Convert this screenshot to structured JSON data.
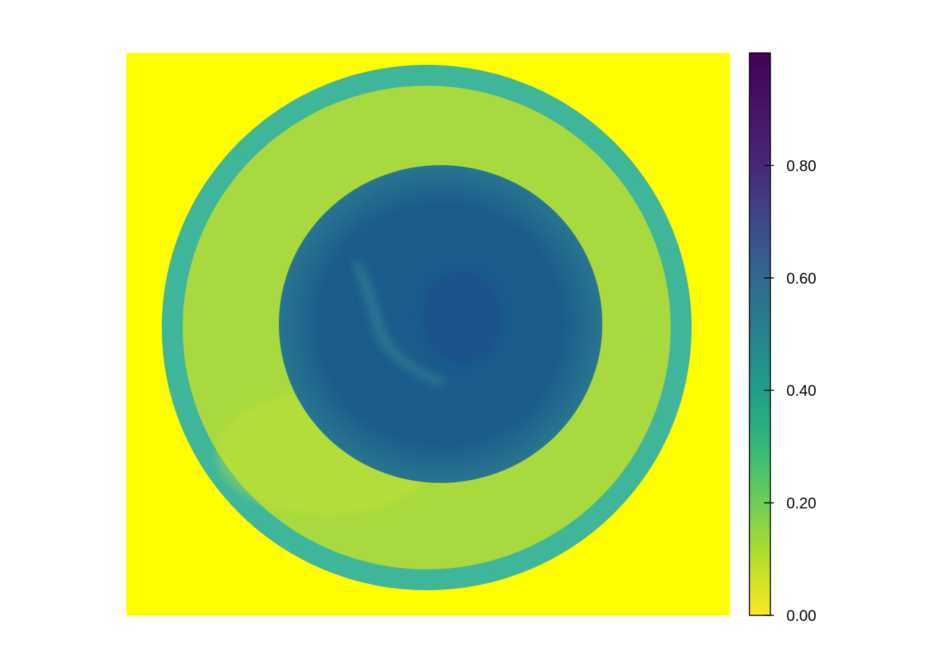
{
  "chart_data": {
    "type": "heatmap",
    "title": "",
    "xlabel": "",
    "ylabel": "",
    "axes_visible": false,
    "grid": false,
    "colormap": "viridis (reversed)",
    "value_range": [
      0,
      1
    ],
    "colorbar": {
      "placement": "right",
      "ticks": [
        0.0,
        0.2,
        0.4,
        0.6,
        0.8
      ],
      "tick_labels": [
        "0.00",
        "0.20",
        "0.40",
        "0.60",
        "0.80"
      ]
    },
    "colorscale": [
      {
        "value": 0.0,
        "color": "#FDE725"
      },
      {
        "value": 0.1,
        "color": "#B5DE2B"
      },
      {
        "value": 0.2,
        "color": "#6ECE58"
      },
      {
        "value": 0.3,
        "color": "#35B779"
      },
      {
        "value": 0.4,
        "color": "#1F9E89"
      },
      {
        "value": 0.5,
        "color": "#26828E"
      },
      {
        "value": 0.6,
        "color": "#31688E"
      },
      {
        "value": 0.7,
        "color": "#3E4989"
      },
      {
        "value": 0.8,
        "color": "#482878"
      },
      {
        "value": 1.0,
        "color": "#440154"
      }
    ],
    "regions": [
      {
        "name": "background",
        "value": 0.0,
        "color": "#FFFF00"
      },
      {
        "name": "dish-rim",
        "value": 0.38,
        "color": "#3FB69A"
      },
      {
        "name": "agar-medium",
        "value": 0.17,
        "color": "#A8D93E"
      },
      {
        "name": "colony",
        "value": 0.7,
        "color": "#1E5C8E"
      },
      {
        "name": "colony-center",
        "value": 0.74,
        "color": "#1C4F8C"
      },
      {
        "name": "streak",
        "value": 0.55,
        "color": "#2E7A92"
      }
    ]
  }
}
